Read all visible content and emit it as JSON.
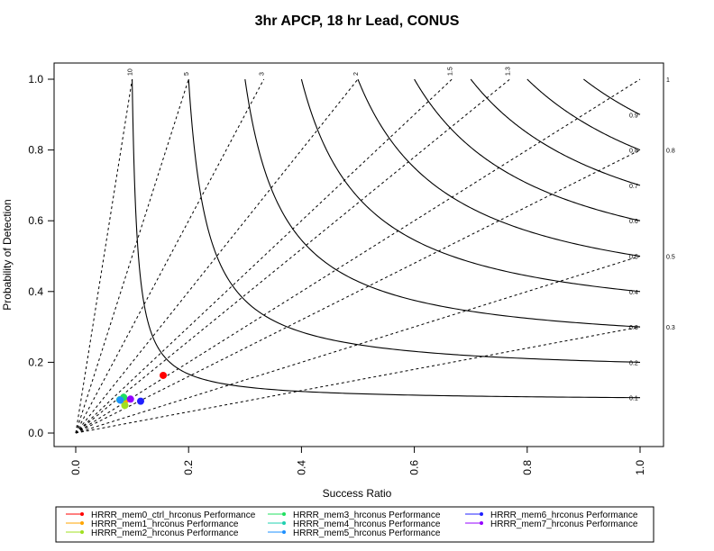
{
  "chart_data": {
    "type": "scatter",
    "subtype": "performance-diagram",
    "title": "3hr APCP, 18 hr Lead, CONUS",
    "xlabel": "Success Ratio",
    "ylabel": "Probability of Detection",
    "xlim": [
      0,
      1
    ],
    "ylim": [
      0,
      1
    ],
    "xticks": [
      "0.0",
      "0.2",
      "0.4",
      "0.6",
      "0.8",
      "1.0"
    ],
    "yticks": [
      "0.0",
      "0.2",
      "0.4",
      "0.6",
      "0.8",
      "1.0"
    ],
    "grid": false,
    "legend_position": "bottom",
    "csi_contours": [
      {
        "value": 0.1,
        "label": "0.1"
      },
      {
        "value": 0.2,
        "label": "0.2"
      },
      {
        "value": 0.3,
        "label": "0.3"
      },
      {
        "value": 0.4,
        "label": "0.4"
      },
      {
        "value": 0.5,
        "label": "0.5"
      },
      {
        "value": 0.6,
        "label": "0.6"
      },
      {
        "value": 0.7,
        "label": "0.7"
      },
      {
        "value": 0.8,
        "label": "0.8"
      },
      {
        "value": 0.9,
        "label": "0.9"
      }
    ],
    "bias_lines": [
      {
        "value": 10,
        "label": "10"
      },
      {
        "value": 5,
        "label": "5"
      },
      {
        "value": 3,
        "label": "3"
      },
      {
        "value": 2,
        "label": "2"
      },
      {
        "value": 1.5,
        "label": "1.5"
      },
      {
        "value": 1.3,
        "label": "1.3"
      },
      {
        "value": 1,
        "label": "1"
      },
      {
        "value": 0.8,
        "label": "0.8"
      },
      {
        "value": 0.5,
        "label": "0.5"
      },
      {
        "value": 0.3,
        "label": "0.3"
      }
    ],
    "series": [
      {
        "name": "HRRR_mem0_ctrl_hrconus Performance",
        "color": "#ff0000",
        "x": 0.155,
        "y": 0.163
      },
      {
        "name": "HRRR_mem1_hrconus Performance",
        "color": "#ffa500",
        "x": 0.088,
        "y": 0.093
      },
      {
        "name": "HRRR_mem2_hrconus Performance",
        "color": "#a0e020",
        "x": 0.087,
        "y": 0.078
      },
      {
        "name": "HRRR_mem3_hrconus Performance",
        "color": "#20e060",
        "x": 0.085,
        "y": 0.101
      },
      {
        "name": "HRRR_mem4_hrconus Performance",
        "color": "#20d0b0",
        "x": 0.078,
        "y": 0.094
      },
      {
        "name": "HRRR_mem5_hrconus Performance",
        "color": "#1e90ff",
        "x": 0.079,
        "y": 0.093
      },
      {
        "name": "HRRR_mem6_hrconus Performance",
        "color": "#2020ff",
        "x": 0.115,
        "y": 0.09
      },
      {
        "name": "HRRR_mem7_hrconus Performance",
        "color": "#9400ff",
        "x": 0.097,
        "y": 0.096
      }
    ]
  }
}
